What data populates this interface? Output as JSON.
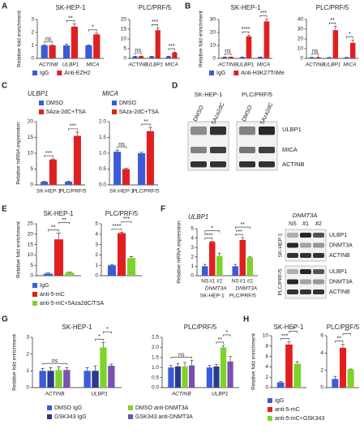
{
  "panel_labels": [
    "A",
    "B",
    "C",
    "D",
    "E",
    "F",
    "G",
    "H"
  ],
  "chart_data": [
    {
      "type": "bar",
      "title": "SK-HEP-1",
      "y_label": "Relative fold enrichment",
      "categories": [
        "ACTINB",
        "ULBP1",
        "MICA"
      ],
      "category_style": "italic",
      "series": [
        {
          "name": "IgG",
          "color": "#3b5bdb",
          "values": [
            1.0,
            1.0,
            1.0
          ],
          "errors": [
            0.05,
            0.1,
            0.05
          ]
        },
        {
          "name": "Anti-EZH2",
          "color": "#e02020",
          "values": [
            1.0,
            2.45,
            1.85
          ],
          "errors": [
            0.05,
            0.2,
            0.1
          ]
        }
      ],
      "ylim": [
        0,
        3
      ],
      "yticks": [
        0,
        1,
        2,
        3
      ],
      "annotations": [
        [
          "ns"
        ],
        [
          "**"
        ],
        [
          "*"
        ]
      ],
      "legend": "below"
    },
    {
      "type": "bar",
      "title": "PLC/PRF/5",
      "categories": [
        "ACTINB",
        "ULBP1",
        "MICA"
      ],
      "category_style": "italic",
      "series": [
        {
          "color": "#3b5bdb",
          "values": [
            1.0,
            1.0,
            1.0
          ],
          "errors": [
            0.1,
            0.1,
            0.1
          ]
        },
        {
          "color": "#e02020",
          "values": [
            1.1,
            14.5,
            3.0
          ],
          "errors": [
            0.1,
            1.2,
            0.3
          ]
        }
      ],
      "ylim": [
        0,
        20
      ],
      "yticks": [
        0,
        5,
        10,
        15,
        20
      ],
      "annotations": [
        [
          "ns"
        ],
        [
          "***"
        ],
        [
          "***"
        ]
      ]
    },
    {
      "type": "bar",
      "title": "SK-HEP-1",
      "y_label": "Relative fold enrichment",
      "categories": [
        "ACTINB",
        "ULBP1",
        "MICA"
      ],
      "category_style": "italic",
      "series": [
        {
          "name": "IgG",
          "color": "#3b5bdb",
          "values": [
            1.0,
            1.0,
            1.0
          ],
          "errors": [
            0.1,
            0.1,
            0.1
          ]
        },
        {
          "name": "Anti-H3K27TriMe",
          "color": "#e02020",
          "values": [
            1.0,
            17,
            28.5
          ],
          "errors": [
            0.1,
            1,
            2
          ]
        }
      ],
      "ylim": [
        0,
        30
      ],
      "yticks": [
        0,
        10,
        20,
        30
      ],
      "annotations": [
        [
          "ns"
        ],
        [
          "****"
        ],
        [
          "***"
        ]
      ],
      "legend": "below"
    },
    {
      "type": "bar",
      "title": "PLC/PRF/5",
      "categories": [
        "ACTINB",
        "ULBP1",
        "MICA"
      ],
      "category_style": "italic",
      "series": [
        {
          "color": "#3b5bdb",
          "values": [
            1.0,
            1.0,
            1.0
          ],
          "errors": [
            0.1,
            0.1,
            0.1
          ]
        },
        {
          "color": "#e02020",
          "values": [
            1.0,
            29,
            16
          ],
          "errors": [
            0.5,
            4,
            3
          ]
        }
      ],
      "ylim": [
        0,
        40
      ],
      "yticks": [
        0,
        10,
        20,
        30,
        40
      ],
      "annotations": [
        [
          "ns"
        ],
        [
          "**"
        ],
        [
          "*"
        ]
      ]
    },
    {
      "type": "bar",
      "title": "ULBP1",
      "title_style": "italic",
      "y_label": "Relative mRNA expression",
      "categories": [
        "SK-HEP-1",
        "PLC/PRF/5"
      ],
      "series": [
        {
          "name": "DMSO",
          "color": "#3b5bdb",
          "values": [
            1.0,
            1.0
          ],
          "errors": [
            0.1,
            0.2
          ]
        },
        {
          "name": "5Aza-2dC+TSA",
          "color": "#e02020",
          "values": [
            8.0,
            15.5
          ],
          "errors": [
            0.2,
            1.2
          ]
        }
      ],
      "ylim": [
        0,
        20
      ],
      "yticks": [
        0,
        5,
        10,
        15,
        20
      ],
      "annotations": [
        [
          "***"
        ],
        [
          "***"
        ]
      ],
      "legend": "top-left"
    },
    {
      "type": "bar",
      "title": "MICA",
      "title_style": "italic",
      "categories": [
        "SK-HEP-1",
        "PLC/PRF/5"
      ],
      "series": [
        {
          "name": "DMSO",
          "color": "#3b5bdb",
          "values": [
            1.05,
            1.0
          ],
          "errors": [
            0.05,
            0.03
          ]
        },
        {
          "name": "5Aza-2dC+TSA",
          "color": "#e02020",
          "values": [
            0.5,
            1.7
          ],
          "errors": [
            0.02,
            0.12
          ]
        }
      ],
      "ylim": [
        0,
        2
      ],
      "yticks": [
        {
          "value": 0,
          "label": "0.0"
        },
        0.5,
        {
          "value": 1,
          "label": "1.0"
        },
        1.5,
        {
          "value": 2,
          "label": "2.0"
        }
      ],
      "annotations": [
        [
          "ns"
        ],
        [
          "**"
        ]
      ],
      "legend": "top-left"
    },
    {
      "type": "bar",
      "title": "SK-HEP-1",
      "y_label": "Relative fold enrichment",
      "categories": [
        null
      ],
      "series": [
        {
          "name": "IgG",
          "color": "#3b5bdb",
          "values": [
            1.0
          ],
          "errors": [
            0.3
          ]
        },
        {
          "name": "anti-5-mC",
          "color": "#e02020",
          "values": [
            17.5
          ],
          "errors": [
            3
          ]
        },
        {
          "name": "anti-5-mC+5Aza2dC/TSA",
          "color": "#7ed32a",
          "values": [
            1.5
          ],
          "errors": [
            0.2
          ]
        }
      ],
      "ylim": [
        0,
        25
      ],
      "yticks": [
        0,
        5,
        10,
        15,
        20,
        25
      ],
      "annotations": [
        [
          "**",
          "**"
        ]
      ],
      "legend": "below"
    },
    {
      "type": "bar",
      "title": "PLC/PRF/5",
      "categories": [
        null
      ],
      "series": [
        {
          "color": "#3b5bdb",
          "values": [
            1.0
          ],
          "errors": [
            0.05
          ]
        },
        {
          "color": "#e02020",
          "values": [
            4.1
          ],
          "errors": [
            0.1
          ]
        },
        {
          "color": "#7ed32a",
          "values": [
            1.7
          ],
          "errors": [
            0.15
          ]
        }
      ],
      "ylim": [
        0,
        5
      ],
      "yticks": [
        0,
        1,
        2,
        3,
        4,
        5
      ],
      "annotations": [
        [
          "****",
          "***"
        ]
      ]
    },
    {
      "type": "bar",
      "title": "ULBP1",
      "title_style": "italic",
      "y_label": "Relative mRNA expression",
      "categories": [
        "SK-HEP-1",
        "PLC/PRF/5"
      ],
      "sublabel": "DNMT3A",
      "series_labels": "below-bars",
      "brackets": "from-first",
      "series": [
        {
          "name": "NS",
          "color": "#3b5bdb",
          "values": [
            1.0,
            1.0
          ],
          "errors": [
            0.2,
            0.2
          ]
        },
        {
          "name": "#1",
          "color": "#e02020",
          "values": [
            3.6,
            3.8
          ],
          "errors": [
            0.05,
            0.25
          ]
        },
        {
          "name": "#2",
          "color": "#7ed32a",
          "values": [
            2.1,
            1.95
          ],
          "errors": [
            0.3,
            0.05
          ]
        }
      ],
      "ylim": [
        0,
        5
      ],
      "yticks": [
        0,
        1,
        2,
        3,
        4,
        5
      ],
      "annotations": [
        [
          "****",
          "*"
        ],
        [
          "***",
          "**"
        ]
      ]
    },
    {
      "type": "bar",
      "title": "SK-HEP-1",
      "y_label": "Relative fold enrichment",
      "categories": [
        "ACTINB",
        "ULBP1"
      ],
      "category_style": "italic",
      "series": [
        {
          "name": "DMSO IgG",
          "color": "#3b5bdb",
          "values": [
            1.0,
            1.0
          ],
          "errors": [
            0.15,
            0.2
          ]
        },
        {
          "name": "GSK343 IgG",
          "color": "#2a3a8c",
          "values": [
            1.0,
            1.0
          ],
          "errors": [
            0.2,
            0.3
          ]
        },
        {
          "name": "DMSO anti-DNMT3A",
          "color": "#7ed32a",
          "values": [
            1.05,
            2.4
          ],
          "errors": [
            0.2,
            0.3
          ]
        },
        {
          "name": "GSK343 anti-DNMT3A",
          "color": "#7b4fb0",
          "values": [
            1.05,
            1.3
          ],
          "errors": [
            0.15,
            0.1
          ]
        }
      ],
      "ylim": [
        0,
        3
      ],
      "yticks": [
        0,
        1,
        2,
        3
      ],
      "annotations": [
        [
          "ns"
        ],
        [
          "*",
          "*"
        ]
      ],
      "legend": "below"
    },
    {
      "type": "bar",
      "title": "PLC/PRF/5",
      "categories": [
        "ACTINB",
        "ULBP1"
      ],
      "category_style": "italic",
      "series": [
        {
          "color": "#3b5bdb",
          "values": [
            1.0,
            1.0
          ],
          "errors": [
            0.1,
            0.1
          ]
        },
        {
          "color": "#2a3a8c",
          "values": [
            1.05,
            1.05
          ],
          "errors": [
            0.15,
            0.1
          ]
        },
        {
          "color": "#7ed32a",
          "values": [
            1.05,
            2.0
          ],
          "errors": [
            0.2,
            0.1
          ]
        },
        {
          "color": "#7b4fb0",
          "values": [
            1.1,
            1.3
          ],
          "errors": [
            0.25,
            0.25
          ]
        }
      ],
      "ylim": [
        0,
        2.5
      ],
      "yticks": [
        {
          "value": 0,
          "label": "0.0"
        },
        0.5,
        {
          "value": 1,
          "label": "1.0"
        },
        1.5,
        {
          "value": 2,
          "label": "2.0"
        },
        2.5
      ],
      "annotations": [
        [
          "ns"
        ],
        [
          "**",
          "*"
        ]
      ]
    },
    {
      "type": "bar",
      "title": "SK-HEP-1",
      "y_label": "Relative fold enrichment",
      "categories": [
        null
      ],
      "series": [
        {
          "name": "IgG",
          "color": "#3b5bdb",
          "values": [
            1.0
          ],
          "errors": [
            0.2
          ]
        },
        {
          "name": "anti-5-mC",
          "color": "#e02020",
          "values": [
            8.3
          ],
          "errors": [
            0.5
          ]
        },
        {
          "name": "anti-5-mC+GSK343",
          "color": "#7ed32a",
          "values": [
            4.6
          ],
          "errors": [
            0.4
          ]
        }
      ],
      "ylim": [
        0,
        10
      ],
      "yticks": [
        0,
        2,
        4,
        6,
        8,
        10
      ],
      "annotations": [
        [
          "***",
          "*"
        ]
      ],
      "legend": "below"
    },
    {
      "type": "bar",
      "title": "PLC/PRF/5",
      "categories": [
        null
      ],
      "series": [
        {
          "color": "#3b5bdb",
          "values": [
            1.0
          ],
          "errors": [
            0.3
          ]
        },
        {
          "color": "#e02020",
          "values": [
            4.6
          ],
          "errors": [
            0.4
          ]
        },
        {
          "color": "#7ed32a",
          "values": [
            2.1
          ],
          "errors": [
            0.05
          ]
        }
      ],
      "ylim": [
        0,
        6
      ],
      "yticks": [
        0,
        2,
        4,
        6
      ],
      "annotations": [
        [
          "**",
          "**"
        ]
      ]
    }
  ],
  "blots": [
    {
      "cell_lines": [
        "SK-HEP-1",
        "PLC/PRF/5"
      ],
      "lanes": [
        "DMSO",
        "5Aza2dC"
      ],
      "rows": [
        "ULBP1",
        "MICA",
        "ACTINB"
      ]
    },
    {
      "title": "DNMT3A",
      "lanes": [
        "NS",
        "#1",
        "#2"
      ],
      "cell_lines": [
        "SK-HEP-1",
        "PLC/PRF/5"
      ],
      "rows": [
        "ULBP1",
        "DNMT3A",
        "ACTINB"
      ]
    }
  ]
}
